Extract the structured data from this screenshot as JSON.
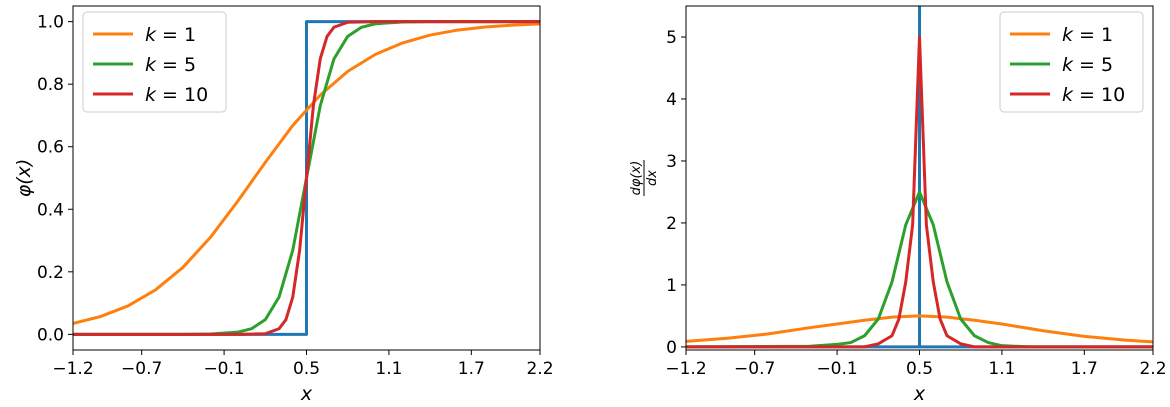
{
  "chart_data": [
    {
      "type": "line",
      "title": "",
      "xlabel": "x",
      "ylabel": "φ(x)",
      "xlim": [
        -1.2,
        2.2
      ],
      "ylim": [
        -0.05,
        1.05
      ],
      "xticks": [
        "−1.2",
        "−0.7",
        "−0.1",
        "0.5",
        "1.1",
        "1.7",
        "2.2"
      ],
      "xtick_values": [
        -1.2,
        -0.7,
        -0.1,
        0.5,
        1.1,
        1.7,
        2.2
      ],
      "yticks": [
        "0.0",
        "0.2",
        "0.4",
        "0.6",
        "0.8",
        "1.0"
      ],
      "ytick_values": [
        0,
        0.2,
        0.4,
        0.6,
        0.8,
        1.0
      ],
      "grid": false,
      "legend_position": "top-left",
      "series": [
        {
          "label_k": "1",
          "color": "#ff7f0e",
          "legend": true,
          "x": [
            -1.2,
            -1.0,
            -0.8,
            -0.6,
            -0.4,
            -0.2,
            0.0,
            0.2,
            0.4,
            0.5,
            0.6,
            0.8,
            1.0,
            1.2,
            1.4,
            1.6,
            1.8,
            2.0,
            2.2
          ],
          "y": [
            0.035,
            0.057,
            0.091,
            0.142,
            0.214,
            0.31,
            0.426,
            0.55,
            0.668,
            0.717,
            0.765,
            0.841,
            0.895,
            0.932,
            0.957,
            0.973,
            0.983,
            0.989,
            0.993
          ]
        },
        {
          "label_k": "5",
          "color": "#2ca02c",
          "legend": true,
          "x": [
            -1.2,
            -0.4,
            -0.2,
            0.0,
            0.1,
            0.2,
            0.3,
            0.4,
            0.5,
            0.6,
            0.7,
            0.8,
            0.9,
            1.0,
            1.2,
            1.4,
            2.2
          ],
          "y": [
            0.0,
            0.0,
            0.001,
            0.007,
            0.018,
            0.047,
            0.119,
            0.269,
            0.5,
            0.731,
            0.881,
            0.953,
            0.982,
            0.993,
            0.999,
            1.0,
            1.0
          ]
        },
        {
          "label_k": "10",
          "color": "#d62728",
          "legend": true,
          "x": [
            -1.2,
            0.0,
            0.2,
            0.3,
            0.35,
            0.4,
            0.45,
            0.5,
            0.55,
            0.6,
            0.65,
            0.7,
            0.8,
            1.0,
            2.2
          ],
          "y": [
            0.0,
            0.0,
            0.002,
            0.018,
            0.047,
            0.119,
            0.269,
            0.5,
            0.731,
            0.881,
            0.953,
            0.982,
            0.998,
            1.0,
            1.0
          ]
        },
        {
          "label_k": "",
          "color": "#1f77b4",
          "legend": false,
          "x": [
            -1.2,
            0.5,
            0.5,
            2.2
          ],
          "y": [
            0.0,
            0.0,
            1.0,
            1.0
          ]
        }
      ]
    },
    {
      "type": "line",
      "title": "",
      "xlabel": "x",
      "ylabel_top": "dφ(x)",
      "ylabel_bottom": "dx",
      "xlim": [
        -1.2,
        2.2
      ],
      "ylim": [
        -0.05,
        5.5
      ],
      "xticks": [
        "−1.2",
        "−0.7",
        "−0.1",
        "0.5",
        "1.1",
        "1.7",
        "2.2"
      ],
      "xtick_values": [
        -1.2,
        -0.7,
        -0.1,
        0.5,
        1.1,
        1.7,
        2.2
      ],
      "yticks": [
        "0",
        "1",
        "2",
        "3",
        "4",
        "5"
      ],
      "ytick_values": [
        0,
        1,
        2,
        3,
        4,
        5
      ],
      "grid": false,
      "legend_position": "top-right",
      "series": [
        {
          "label_k": "1",
          "color": "#ff7f0e",
          "legend": true,
          "x": [
            -1.2,
            -0.9,
            -0.6,
            -0.3,
            -0.1,
            0.1,
            0.3,
            0.5,
            0.7,
            0.9,
            1.1,
            1.4,
            1.7,
            2.0,
            2.2
          ],
          "y": [
            0.09,
            0.14,
            0.21,
            0.31,
            0.37,
            0.43,
            0.48,
            0.5,
            0.48,
            0.43,
            0.37,
            0.26,
            0.17,
            0.11,
            0.08
          ]
        },
        {
          "label_k": "5",
          "color": "#2ca02c",
          "legend": true,
          "x": [
            -1.2,
            -0.3,
            -0.1,
            0.0,
            0.1,
            0.2,
            0.3,
            0.4,
            0.5,
            0.6,
            0.7,
            0.8,
            0.9,
            1.0,
            1.1,
            1.3,
            2.2
          ],
          "y": [
            0.0,
            0.01,
            0.04,
            0.07,
            0.18,
            0.45,
            1.05,
            1.97,
            2.5,
            1.97,
            1.05,
            0.45,
            0.18,
            0.07,
            0.02,
            0.0,
            0.0
          ]
        },
        {
          "label_k": "10",
          "color": "#d62728",
          "legend": true,
          "x": [
            -1.2,
            0.1,
            0.2,
            0.3,
            0.35,
            0.4,
            0.45,
            0.5,
            0.55,
            0.6,
            0.65,
            0.7,
            0.8,
            0.9,
            2.2
          ],
          "y": [
            0.0,
            0.0,
            0.05,
            0.18,
            0.45,
            1.05,
            1.97,
            5.0,
            1.97,
            1.05,
            0.45,
            0.18,
            0.05,
            0.0,
            0.0
          ]
        },
        {
          "label_k": "",
          "color": "#1f77b4",
          "legend": false,
          "x": [
            -1.2,
            0.5,
            0.5,
            0.5,
            2.2
          ],
          "y": [
            0.0,
            0.0,
            5.5,
            0.0,
            0.0
          ]
        }
      ]
    }
  ]
}
